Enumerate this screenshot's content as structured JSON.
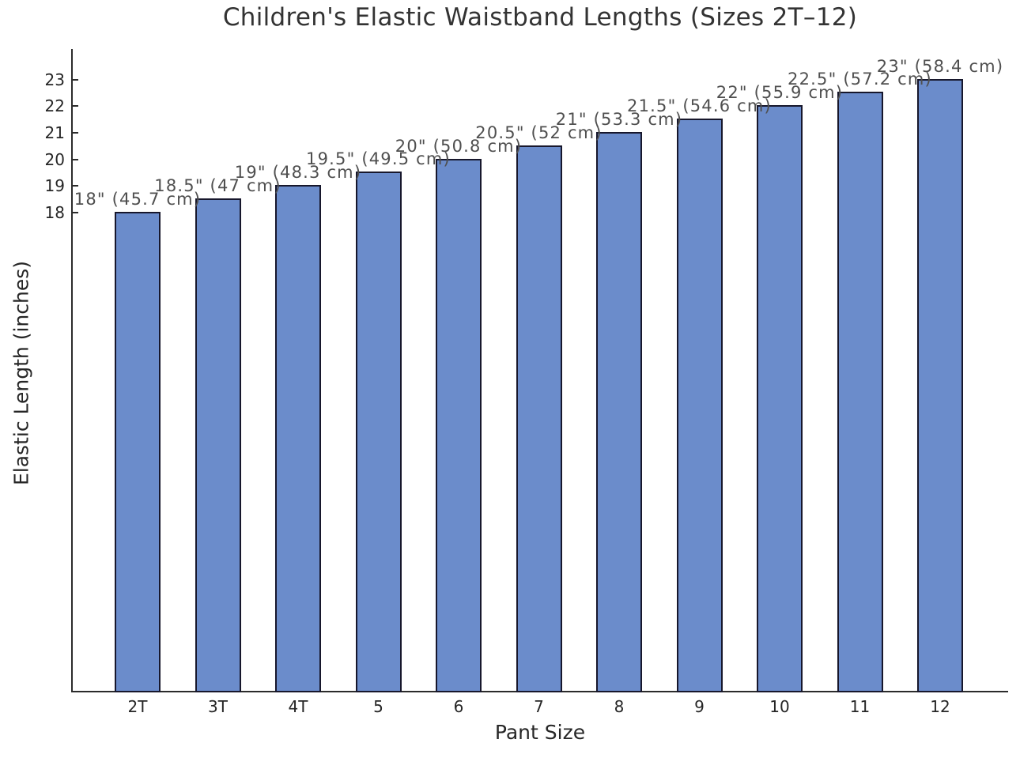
{
  "chart_data": {
    "type": "bar",
    "title": "Children's Elastic Waistband Lengths (Sizes 2T–12)",
    "xlabel": "Pant Size",
    "ylabel": "Elastic Length (inches)",
    "categories": [
      "2T",
      "3T",
      "4T",
      "5",
      "6",
      "7",
      "8",
      "9",
      "10",
      "11",
      "12"
    ],
    "values": [
      18,
      18.5,
      19,
      19.5,
      20,
      20.5,
      21,
      21.5,
      22,
      22.5,
      23
    ],
    "bar_labels": [
      "18\" (45.7 cm)",
      "18.5\" (47 cm)",
      "19\" (48.3 cm)",
      "19.5\" (49.5 cm)",
      "20\" (50.8 cm)",
      "20.5\" (52 cm)",
      "21\" (53.3 cm)",
      "21.5\" (54.6 cm)",
      "22\" (55.9 cm)",
      "22.5\" (57.2 cm)",
      "23\" (58.4 cm)"
    ],
    "yticks": [
      18,
      19,
      20,
      21,
      22,
      23
    ],
    "ylim": [
      0,
      24.15
    ],
    "grid": false,
    "legend_position": "none",
    "colors": {
      "bar_fill": "#6B8CCB",
      "bar_edge": "#17172C",
      "axis": "#2B2B2B",
      "tick_label": "#262626",
      "bar_label": "#4F4F4F",
      "title": "#333333",
      "background": "#FFFFFF"
    }
  }
}
